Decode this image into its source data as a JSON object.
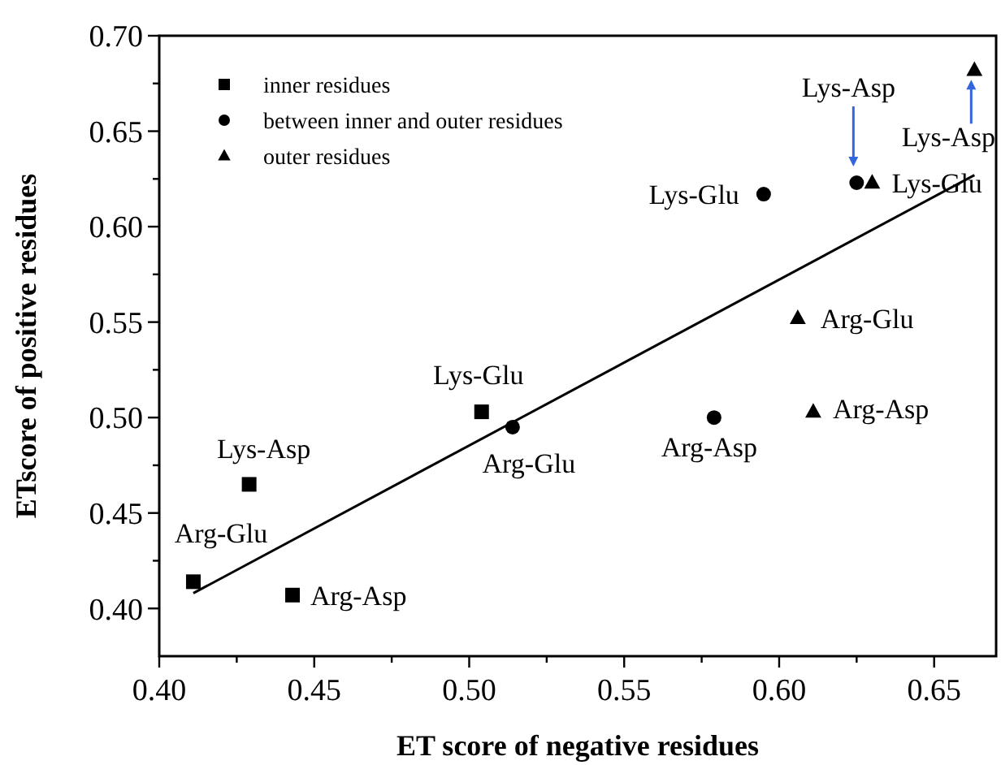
{
  "chart_data": {
    "type": "scatter",
    "xlabel": "ET score of negative residues",
    "ylabel": "ETscore of positive residues",
    "xlim": [
      0.4,
      0.67
    ],
    "ylim": [
      0.375,
      0.7
    ],
    "xticks": [
      {
        "value": 0.4,
        "label": "0.40"
      },
      {
        "value": 0.425,
        "label": null
      },
      0.45,
      {
        "value": 0.475,
        "label": null
      },
      {
        "value": 0.5,
        "label": "0.50"
      },
      {
        "value": 0.525,
        "label": null
      },
      0.55,
      {
        "value": 0.575,
        "label": null
      },
      {
        "value": 0.6,
        "label": "0.60"
      },
      {
        "value": 0.625,
        "label": null
      },
      0.65
    ],
    "yticks": [
      {
        "value": 0.4,
        "label": "0.40"
      },
      {
        "value": 0.425,
        "label": null
      },
      0.45,
      {
        "value": 0.475,
        "label": null
      },
      {
        "value": 0.5,
        "label": "0.50"
      },
      {
        "value": 0.525,
        "label": null
      },
      0.55,
      {
        "value": 0.575,
        "label": null
      },
      {
        "value": 0.6,
        "label": "0.60"
      },
      {
        "value": 0.625,
        "label": null
      },
      0.65,
      {
        "value": 0.675,
        "label": null
      },
      {
        "value": 0.7,
        "label": "0.70"
      }
    ],
    "legend": "top left",
    "grid": false,
    "series": [
      {
        "name": "inner residues",
        "color": "#000000",
        "marker": "square",
        "x": [
          0.411,
          0.429,
          0.443,
          0.504
        ],
        "values": [
          0.414,
          0.465,
          0.407,
          0.503
        ]
      },
      {
        "name": "between inner and outer residues",
        "color": "#000000",
        "marker": "circle",
        "x": [
          0.514,
          0.579,
          0.595,
          0.625
        ],
        "values": [
          0.495,
          0.5,
          0.617,
          0.623
        ]
      },
      {
        "name": "outer residues",
        "color": "#000000",
        "marker": "triangle",
        "x": [
          0.611,
          0.606,
          0.63,
          0.663
        ],
        "values": [
          0.503,
          0.552,
          0.623,
          0.682
        ]
      },
      {
        "type": "line",
        "color": "#000000",
        "marker": "none",
        "line_style": "solid",
        "x": [
          0.411,
          0.663
        ],
        "values": [
          0.408,
          0.627
        ]
      }
    ],
    "annotations": [
      {
        "text": "Arg-Glu",
        "x": 0.411,
        "y": 0.414
      },
      {
        "text": "Lys-Asp",
        "x": 0.429,
        "y": 0.465
      },
      {
        "text": "Arg-Asp",
        "x": 0.443,
        "y": 0.407
      },
      {
        "text": "Lys-Glu",
        "x": 0.504,
        "y": 0.503
      },
      {
        "text": "Arg-Glu",
        "x": 0.514,
        "y": 0.495
      },
      {
        "text": "Arg-Asp",
        "x": 0.579,
        "y": 0.5
      },
      {
        "text": "Lys-Glu",
        "x": 0.595,
        "y": 0.617
      },
      {
        "text": "Lys-Asp",
        "x": 0.625,
        "y": 0.623
      },
      {
        "text": "Arg-Asp",
        "x": 0.611,
        "y": 0.503
      },
      {
        "text": "Arg-Glu",
        "x": 0.606,
        "y": 0.552
      },
      {
        "text": "Lys-Glu",
        "x": 0.63,
        "y": 0.623
      },
      {
        "text": "Lys-Asp",
        "x": 0.663,
        "y": 0.682
      }
    ]
  }
}
